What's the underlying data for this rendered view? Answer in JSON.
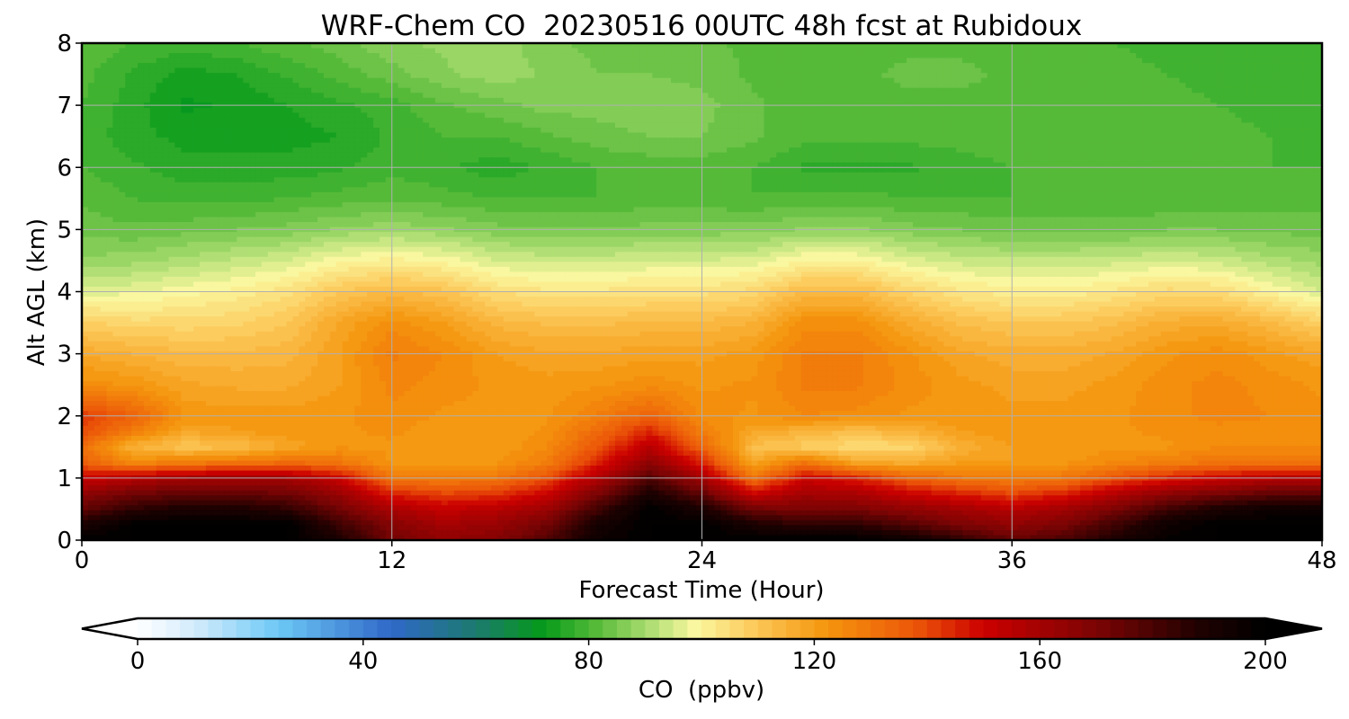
{
  "chart_data": {
    "type": "heatmap",
    "title": "WRF-Chem CO  20230516 00UTC 48h fcst at Rubidoux",
    "xlabel": "Forecast Time (Hour)",
    "ylabel": "Alt AGL (km)",
    "xlim": [
      0,
      48
    ],
    "ylim": [
      0,
      8
    ],
    "x_ticks": [
      0,
      12,
      24,
      36,
      48
    ],
    "y_ticks": [
      0,
      1,
      2,
      3,
      4,
      5,
      6,
      7,
      8
    ],
    "grid": true,
    "colorbar": {
      "label": "CO  (ppbv)",
      "ticks": [
        0,
        40,
        80,
        120,
        160,
        200
      ],
      "range": [
        0,
        200
      ],
      "extend": "both",
      "under_color": "#ffffff",
      "over_color": "#000000",
      "stops": [
        {
          "value": 0,
          "color": "#ffffff"
        },
        {
          "value": 10,
          "color": "#d4ecfb"
        },
        {
          "value": 25,
          "color": "#6cc8f5"
        },
        {
          "value": 45,
          "color": "#3068c8"
        },
        {
          "value": 60,
          "color": "#1c7a6e"
        },
        {
          "value": 72,
          "color": "#069a1a"
        },
        {
          "value": 82,
          "color": "#5cbd3c"
        },
        {
          "value": 92,
          "color": "#b8e27a"
        },
        {
          "value": 99,
          "color": "#fbf8a0"
        },
        {
          "value": 110,
          "color": "#fcc656"
        },
        {
          "value": 122,
          "color": "#f5960e"
        },
        {
          "value": 138,
          "color": "#ec5608"
        },
        {
          "value": 150,
          "color": "#cc0000"
        },
        {
          "value": 170,
          "color": "#7c0404"
        },
        {
          "value": 188,
          "color": "#200101"
        },
        {
          "value": 200,
          "color": "#000000"
        }
      ]
    },
    "x": [
      0,
      2,
      4,
      6,
      8,
      10,
      12,
      14,
      16,
      18,
      20,
      22,
      24,
      26,
      28,
      30,
      32,
      34,
      36,
      38,
      40,
      42,
      44,
      46,
      48
    ],
    "y": [
      0,
      0.25,
      0.5,
      0.75,
      1,
      1.25,
      1.5,
      1.75,
      2,
      2.5,
      3,
      3.5,
      4,
      4.5,
      5,
      5.5,
      6,
      6.5,
      7,
      7.5,
      8
    ],
    "z": [
      [
        200,
        200,
        200,
        200,
        200,
        190,
        172,
        165,
        168,
        178,
        195,
        200,
        200,
        200,
        200,
        200,
        195,
        185,
        175,
        180,
        190,
        198,
        200,
        200,
        200
      ],
      [
        190,
        200,
        200,
        200,
        200,
        182,
        168,
        160,
        163,
        172,
        192,
        200,
        200,
        190,
        185,
        185,
        178,
        170,
        165,
        170,
        182,
        195,
        200,
        200,
        200
      ],
      [
        175,
        185,
        190,
        190,
        185,
        172,
        158,
        152,
        155,
        162,
        182,
        200,
        190,
        172,
        170,
        170,
        165,
        160,
        155,
        160,
        170,
        182,
        190,
        195,
        195
      ],
      [
        165,
        172,
        175,
        175,
        172,
        162,
        145,
        140,
        142,
        150,
        170,
        190,
        175,
        150,
        160,
        158,
        150,
        145,
        140,
        145,
        155,
        165,
        170,
        175,
        175
      ],
      [
        150,
        155,
        160,
        160,
        160,
        150,
        130,
        128,
        130,
        138,
        158,
        178,
        160,
        130,
        150,
        145,
        135,
        130,
        128,
        130,
        138,
        145,
        150,
        155,
        155
      ],
      [
        135,
        125,
        128,
        130,
        132,
        130,
        122,
        120,
        122,
        128,
        145,
        165,
        145,
        118,
        130,
        118,
        116,
        120,
        120,
        122,
        125,
        128,
        130,
        130,
        130
      ],
      [
        132,
        115,
        110,
        112,
        118,
        122,
        122,
        120,
        120,
        125,
        138,
        155,
        135,
        112,
        108,
        105,
        106,
        115,
        120,
        120,
        122,
        122,
        125,
        125,
        125
      ],
      [
        140,
        128,
        118,
        120,
        122,
        122,
        123,
        121,
        120,
        123,
        133,
        145,
        128,
        118,
        115,
        112,
        115,
        120,
        122,
        122,
        122,
        123,
        124,
        124,
        124
      ],
      [
        142,
        135,
        122,
        121,
        121,
        122,
        124,
        122,
        121,
        122,
        128,
        135,
        124,
        122,
        125,
        124,
        122,
        122,
        121,
        121,
        122,
        124,
        126,
        125,
        123
      ],
      [
        124,
        122,
        118,
        117,
        117,
        120,
        126,
        124,
        122,
        121,
        122,
        124,
        122,
        123,
        128,
        128,
        124,
        121,
        119,
        119,
        121,
        124,
        126,
        124,
        122
      ],
      [
        117,
        115,
        113,
        113,
        114,
        120,
        128,
        125,
        120,
        118,
        118,
        119,
        119,
        121,
        128,
        128,
        123,
        118,
        116,
        116,
        118,
        122,
        124,
        121,
        118
      ],
      [
        108,
        106,
        106,
        107,
        110,
        118,
        124,
        120,
        114,
        112,
        112,
        113,
        113,
        115,
        124,
        124,
        117,
        112,
        110,
        110,
        112,
        116,
        117,
        113,
        108
      ],
      [
        96,
        97,
        99,
        101,
        104,
        110,
        113,
        111,
        105,
        103,
        103,
        104,
        104,
        106,
        113,
        113,
        107,
        103,
        101,
        101,
        103,
        106,
        105,
        100,
        95
      ],
      [
        88,
        89,
        91,
        93,
        95,
        99,
        101,
        99,
        95,
        94,
        94,
        95,
        95,
        96,
        100,
        100,
        96,
        94,
        93,
        93,
        94,
        95,
        94,
        91,
        89
      ],
      [
        84,
        83,
        84,
        85,
        86,
        88,
        89,
        88,
        86,
        85,
        85,
        86,
        86,
        86,
        88,
        88,
        86,
        85,
        84,
        84,
        84,
        85,
        85,
        84,
        84
      ],
      [
        82,
        80,
        79,
        79,
        80,
        81,
        82,
        81,
        80,
        80,
        80,
        81,
        81,
        80,
        81,
        81,
        80,
        80,
        80,
        80,
        80,
        80,
        81,
        81,
        81
      ],
      [
        80,
        78,
        76,
        76,
        76,
        77,
        79,
        78,
        76,
        78,
        80,
        81,
        81,
        80,
        77,
        77,
        77,
        79,
        80,
        80,
        80,
        80,
        80,
        80,
        80
      ],
      [
        79,
        76,
        74,
        74,
        74,
        75,
        78,
        80,
        80,
        82,
        84,
        85,
        85,
        83,
        81,
        81,
        81,
        81,
        81,
        81,
        81,
        81,
        81,
        80,
        79
      ],
      [
        80,
        76,
        72,
        73,
        75,
        77,
        79,
        82,
        84,
        86,
        86,
        87,
        86,
        83,
        81,
        81,
        82,
        82,
        82,
        82,
        82,
        81,
        80,
        79,
        78
      ],
      [
        81,
        77,
        74,
        75,
        78,
        81,
        84,
        87,
        89,
        87,
        85,
        85,
        84,
        82,
        81,
        82,
        83,
        83,
        82,
        82,
        81,
        80,
        79,
        78,
        78
      ],
      [
        82,
        80,
        79,
        80,
        82,
        84,
        87,
        88,
        89,
        86,
        84,
        84,
        83,
        82,
        81,
        81,
        82,
        82,
        81,
        81,
        80,
        79,
        79,
        78,
        78
      ]
    ]
  }
}
